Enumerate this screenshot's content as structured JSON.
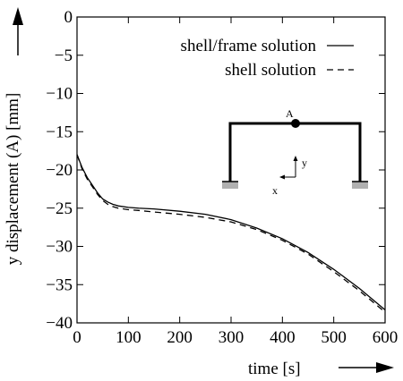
{
  "chart_data": {
    "type": "line",
    "xlabel": "time [s]",
    "ylabel": "y displacement (A) [mm]",
    "xlim": [
      0,
      600
    ],
    "ylim": [
      -40,
      0
    ],
    "xticks": [
      0,
      100,
      200,
      300,
      400,
      500,
      600
    ],
    "yticks": [
      0,
      -5,
      -10,
      -15,
      -20,
      -25,
      -30,
      -35,
      -40
    ],
    "grid": false,
    "legend_position": "top-right",
    "series": [
      {
        "name": "shell/frame solution",
        "style": "solid",
        "x": [
          0,
          10,
          20,
          30,
          40,
          50,
          60,
          70,
          80,
          100,
          120,
          150,
          200,
          250,
          300,
          350,
          400,
          450,
          500,
          550,
          600
        ],
        "y": [
          -18.0,
          -19.7,
          -21.0,
          -22.0,
          -23.0,
          -23.8,
          -24.2,
          -24.5,
          -24.7,
          -24.9,
          -25.0,
          -25.1,
          -25.4,
          -25.8,
          -26.5,
          -27.6,
          -29.0,
          -30.8,
          -33.0,
          -35.5,
          -38.3
        ]
      },
      {
        "name": "shell solution",
        "style": "dashed",
        "x": [
          0,
          10,
          20,
          30,
          40,
          50,
          60,
          70,
          80,
          100,
          120,
          150,
          200,
          250,
          300,
          350,
          400,
          450,
          500,
          550,
          600
        ],
        "y": [
          -18.0,
          -19.9,
          -21.2,
          -22.2,
          -23.2,
          -24.0,
          -24.5,
          -24.8,
          -25.0,
          -25.2,
          -25.3,
          -25.5,
          -25.8,
          -26.2,
          -26.8,
          -27.8,
          -29.2,
          -31.0,
          -33.3,
          -35.8,
          -38.6
        ]
      }
    ],
    "inset": {
      "point_label": "A",
      "axis_y_label": "y",
      "axis_x_label": "x"
    }
  }
}
